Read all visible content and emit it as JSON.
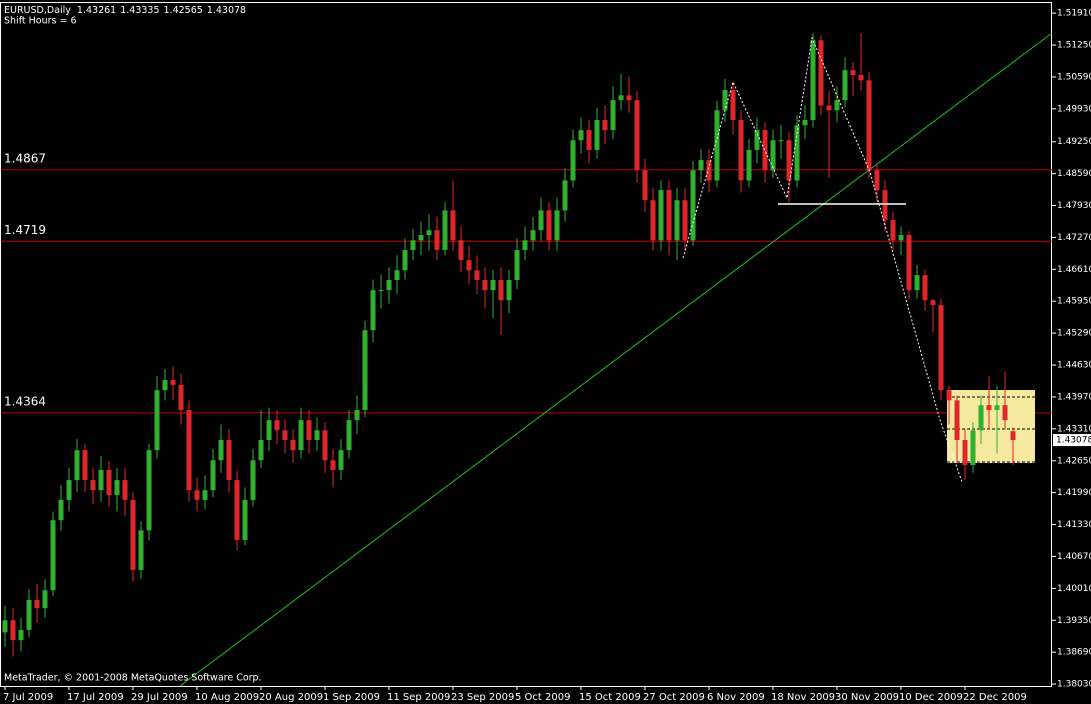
{
  "chart_data": {
    "type": "candlestick",
    "symbol": "EURUSD,Daily",
    "subtitle": "Shift Hours = 6",
    "footer": "MetaTrader, © 2001-2008 MetaQuotes Software Corp.",
    "up_color": "#2fb12f",
    "down_color": "#e0262a",
    "level_color": "#c00000",
    "levels": [
      1.4867,
      1.4719,
      1.4364
    ],
    "ylim": [
      1.3799,
      1.5212
    ],
    "yticks": [
      {
        "value": 1.5191,
        "label": "1.51910"
      },
      {
        "value": 1.5125,
        "label": "1.51250"
      },
      {
        "value": 1.5059,
        "label": "1.50590"
      },
      {
        "value": 1.4993,
        "label": "1.49930"
      },
      {
        "value": 1.4925,
        "label": "1.49250"
      },
      {
        "value": 1.4859,
        "label": "1.48590"
      },
      {
        "value": 1.4793,
        "label": "1.47930"
      },
      {
        "value": 1.4727,
        "label": "1.47270"
      },
      {
        "value": 1.4661,
        "label": "1.46610"
      },
      {
        "value": 1.4595,
        "label": "1.45950"
      },
      {
        "value": 1.4529,
        "label": "1.45290"
      },
      {
        "value": 1.4463,
        "label": "1.44630"
      },
      {
        "value": 1.4397,
        "label": "1.43970"
      },
      {
        "value": 1.4331,
        "label": "1.43310"
      },
      {
        "value": 1.4265,
        "label": "1.42650"
      },
      {
        "value": 1.4199,
        "label": "1.41990"
      },
      {
        "value": 1.4133,
        "label": "1.41330"
      },
      {
        "value": 1.4067,
        "label": "1.40670"
      },
      {
        "value": 1.4001,
        "label": "1.40010"
      },
      {
        "value": 1.3935,
        "label": "1.39350"
      },
      {
        "value": 1.3869,
        "label": "1.38690"
      },
      {
        "value": 1.3803,
        "label": "1.38030"
      }
    ],
    "categories": [
      "7 Jul 2009",
      null,
      null,
      null,
      null,
      null,
      null,
      null,
      "17 Jul 2009",
      null,
      null,
      null,
      null,
      null,
      null,
      null,
      "29 Jul 2009",
      null,
      null,
      null,
      null,
      null,
      null,
      null,
      "10 Aug 2009",
      null,
      null,
      null,
      null,
      null,
      null,
      null,
      "20 Aug 2009",
      null,
      null,
      null,
      null,
      null,
      null,
      null,
      "1 Sep 2009",
      null,
      null,
      null,
      null,
      null,
      null,
      null,
      "11 Sep 2009",
      null,
      null,
      null,
      null,
      null,
      null,
      null,
      "23 Sep 2009",
      null,
      null,
      null,
      null,
      null,
      null,
      null,
      "5 Oct 2009",
      null,
      null,
      null,
      null,
      null,
      null,
      null,
      "15 Oct 2009",
      null,
      null,
      null,
      null,
      null,
      null,
      null,
      "27 Oct 2009",
      null,
      null,
      null,
      null,
      null,
      null,
      null,
      "6 Nov 2009",
      null,
      null,
      null,
      null,
      null,
      null,
      null,
      "18 Nov 2009",
      null,
      null,
      null,
      null,
      null,
      null,
      null,
      "30 Nov 2009",
      null,
      null,
      null,
      null,
      null,
      null,
      null,
      "10 Dec 2009",
      null,
      null,
      null,
      null,
      null,
      null,
      null,
      "22 Dec 2009",
      null,
      null,
      null,
      null,
      null,
      null
    ],
    "open": [
      1.391,
      1.3935,
      1.3894,
      1.3915,
      1.3977,
      1.396,
      1.3997,
      1.4142,
      1.4184,
      1.4225,
      1.4287,
      1.4225,
      1.4204,
      1.4246,
      1.4194,
      1.4225,
      1.4184,
      1.4039,
      1.4121,
      1.4287,
      1.4411,
      1.4432,
      1.4422,
      1.437,
      1.4204,
      1.4184,
      1.4204,
      1.4266,
      1.4308,
      1.4225,
      1.4101,
      1.4184,
      1.4266,
      1.4308,
      1.4349,
      1.4328,
      1.4308,
      1.4287,
      1.4349,
      1.4308,
      1.4328,
      1.4266,
      1.4246,
      1.4287,
      1.4349,
      1.437,
      1.4535,
      1.4618,
      1.4618,
      1.4639,
      1.4659,
      1.4701,
      1.4721,
      1.4732,
      1.4742,
      1.4701,
      1.4783,
      1.4721,
      1.468,
      1.4659,
      1.4639,
      1.4618,
      1.4639,
      1.4597,
      1.4639,
      1.4701,
      1.4721,
      1.4742,
      1.4783,
      1.4721,
      1.4783,
      1.4845,
      1.4928,
      1.4949,
      1.4908,
      1.497,
      1.4949,
      1.5011,
      1.5021,
      1.5011,
      1.4866,
      1.4804,
      1.4721,
      1.4825,
      1.4721,
      1.4804,
      1.4721,
      1.4866,
      1.4887,
      1.4845,
      1.499,
      1.5032,
      1.497,
      1.4845,
      1.4908,
      1.4949,
      1.4866,
      1.4928,
      1.4928,
      1.4845,
      1.4959,
      1.497,
      1.5135,
      1.5,
      1.499,
      1.5011,
      1.5073,
      1.5063,
      1.5052,
      1.4866,
      1.4825,
      1.4763,
      1.4721,
      1.4732,
      1.4618,
      1.4649,
      1.4597,
      1.4587,
      1.4411,
      1.439,
      1.4308,
      1.4256,
      1.4328,
      1.438,
      1.437,
      1.438,
      1.43261
    ],
    "high": [
      1.3965,
      1.396,
      1.394,
      1.4,
      1.401,
      1.402,
      1.416,
      1.4215,
      1.425,
      1.431,
      1.43,
      1.425,
      1.4275,
      1.4265,
      1.425,
      1.425,
      1.42,
      1.414,
      1.43,
      1.444,
      1.4455,
      1.446,
      1.4445,
      1.439,
      1.423,
      1.4235,
      1.429,
      1.434,
      1.433,
      1.4245,
      1.421,
      1.429,
      1.437,
      1.4375,
      1.437,
      1.435,
      1.433,
      1.4375,
      1.437,
      1.4355,
      1.4345,
      1.429,
      1.431,
      1.437,
      1.44,
      1.4555,
      1.464,
      1.465,
      1.4665,
      1.469,
      1.4725,
      1.4745,
      1.476,
      1.4775,
      1.477,
      1.48,
      1.4845,
      1.475,
      1.471,
      1.469,
      1.4665,
      1.466,
      1.4665,
      1.466,
      1.4725,
      1.475,
      1.477,
      1.481,
      1.48,
      1.481,
      1.487,
      1.495,
      1.4975,
      1.497,
      1.4995,
      1.5,
      1.504,
      1.5065,
      1.506,
      1.503,
      1.489,
      1.483,
      1.4845,
      1.4845,
      1.483,
      1.483,
      1.4885,
      1.491,
      1.491,
      1.501,
      1.5055,
      1.505,
      1.499,
      1.493,
      1.4975,
      1.4965,
      1.495,
      1.496,
      1.4945,
      1.498,
      1.5,
      1.515,
      1.5145,
      1.503,
      1.504,
      1.51,
      1.509,
      1.515,
      1.507,
      1.488,
      1.4845,
      1.478,
      1.475,
      1.474,
      1.467,
      1.466,
      1.46,
      1.46,
      1.442,
      1.44,
      1.433,
      1.4345,
      1.44,
      1.444,
      1.442,
      1.445,
      1.43335
    ],
    "low": [
      1.388,
      1.386,
      1.387,
      1.39,
      1.393,
      1.394,
      1.3985,
      1.412,
      1.416,
      1.42,
      1.42,
      1.4175,
      1.418,
      1.417,
      1.416,
      1.415,
      1.4015,
      1.402,
      1.41,
      1.427,
      1.439,
      1.439,
      1.434,
      1.418,
      1.416,
      1.4165,
      1.419,
      1.424,
      1.42,
      1.408,
      1.409,
      1.417,
      1.425,
      1.4285,
      1.43,
      1.428,
      1.426,
      1.427,
      1.428,
      1.4285,
      1.424,
      1.421,
      1.4225,
      1.427,
      1.432,
      1.4355,
      1.451,
      1.458,
      1.459,
      1.461,
      1.464,
      1.468,
      1.469,
      1.47,
      1.468,
      1.469,
      1.47,
      1.4655,
      1.463,
      1.461,
      1.458,
      1.456,
      1.4525,
      1.457,
      1.462,
      1.468,
      1.47,
      1.472,
      1.47,
      1.47,
      1.476,
      1.483,
      1.49,
      1.488,
      1.489,
      1.492,
      1.493,
      1.499,
      1.4985,
      1.484,
      1.478,
      1.47,
      1.47,
      1.469,
      1.468,
      1.47,
      1.471,
      1.484,
      1.482,
      1.483,
      1.4965,
      1.494,
      1.482,
      1.483,
      1.488,
      1.484,
      1.485,
      1.489,
      1.48,
      1.483,
      1.493,
      1.4955,
      1.498,
      1.485,
      1.4965,
      1.4995,
      1.502,
      1.503,
      1.485,
      1.48,
      1.474,
      1.47,
      1.469,
      1.46,
      1.46,
      1.4575,
      1.453,
      1.439,
      1.434,
      1.426,
      1.4225,
      1.424,
      1.43,
      1.433,
      1.428,
      1.433,
      1.42565
    ],
    "close": [
      1.3935,
      1.3894,
      1.3915,
      1.3977,
      1.396,
      1.3997,
      1.4142,
      1.4184,
      1.4225,
      1.4287,
      1.4225,
      1.4204,
      1.4246,
      1.4194,
      1.4225,
      1.4184,
      1.4039,
      1.4121,
      1.4287,
      1.4411,
      1.4432,
      1.4422,
      1.437,
      1.4204,
      1.4184,
      1.4204,
      1.4266,
      1.4308,
      1.4225,
      1.4101,
      1.4184,
      1.4266,
      1.4308,
      1.4349,
      1.4328,
      1.4308,
      1.4287,
      1.4349,
      1.4308,
      1.4328,
      1.4266,
      1.4246,
      1.4287,
      1.4349,
      1.437,
      1.4535,
      1.4618,
      1.4618,
      1.4639,
      1.4659,
      1.4701,
      1.4721,
      1.4732,
      1.4742,
      1.4701,
      1.4783,
      1.4721,
      1.468,
      1.4659,
      1.4639,
      1.4618,
      1.4639,
      1.4597,
      1.4639,
      1.4701,
      1.4721,
      1.4742,
      1.4783,
      1.4721,
      1.4783,
      1.4845,
      1.4928,
      1.4949,
      1.4908,
      1.497,
      1.4949,
      1.5011,
      1.5021,
      1.5011,
      1.4866,
      1.4804,
      1.4721,
      1.4825,
      1.4721,
      1.4804,
      1.4721,
      1.4866,
      1.4887,
      1.4845,
      1.499,
      1.5032,
      1.497,
      1.4845,
      1.4908,
      1.4949,
      1.4866,
      1.4928,
      1.4928,
      1.4845,
      1.4959,
      1.497,
      1.5135,
      1.5,
      1.499,
      1.5011,
      1.5073,
      1.5063,
      1.5052,
      1.4866,
      1.4825,
      1.4763,
      1.4721,
      1.4732,
      1.4618,
      1.4649,
      1.4597,
      1.4587,
      1.4411,
      1.439,
      1.4308,
      1.4256,
      1.4328,
      1.438,
      1.437,
      1.438,
      1.4349,
      1.43078
    ]
  }
}
